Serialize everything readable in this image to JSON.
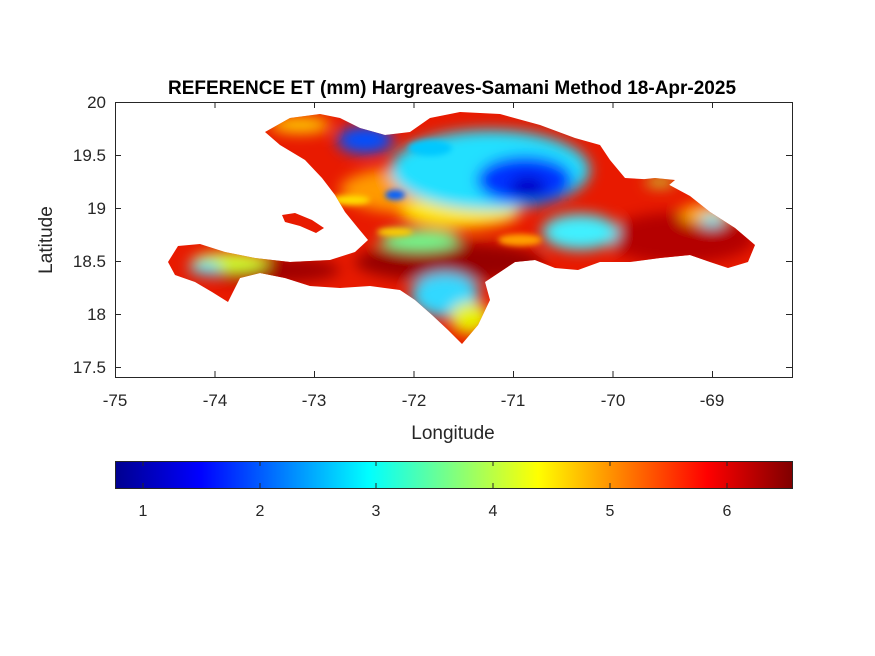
{
  "title": "REFERENCE ET (mm) Hargreaves-Samani Method  18-Apr-2025",
  "xlabel": "Longitude",
  "ylabel": "Latitude",
  "xticks": [
    "-75",
    "-74",
    "-73",
    "-72",
    "-71",
    "-70",
    "-69"
  ],
  "yticks": [
    "17.5",
    "18",
    "18.5",
    "19",
    "19.5",
    "20"
  ],
  "colorbar": {
    "colormap": "jet",
    "range": [
      0.75,
      6.55
    ],
    "ticks": [
      "1",
      "2",
      "3",
      "4",
      "5",
      "6"
    ],
    "colors": [
      "#00008f",
      "#0000ff",
      "#00ffff",
      "#ffff00",
      "#ff0000",
      "#800000"
    ]
  },
  "chart_data": {
    "type": "heatmap",
    "title": "REFERENCE ET (mm) Hargreaves-Samani Method  18-Apr-2025",
    "xlabel": "Longitude",
    "ylabel": "Latitude",
    "xlim": [
      -75,
      -68.2
    ],
    "ylim": [
      17.4,
      20
    ],
    "grid": false,
    "variable_range": [
      0.75,
      6.55
    ],
    "zones": [
      {
        "lon": -70.9,
        "lat": 19.3,
        "value": 1.6
      },
      {
        "lon": -71.4,
        "lat": 19.35,
        "value": 2.4
      },
      {
        "lon": -72.55,
        "lat": 19.55,
        "value": 2.5
      },
      {
        "lon": -71.9,
        "lat": 18.7,
        "value": 2.7
      },
      {
        "lon": -71.6,
        "lat": 18.05,
        "value": 2.8
      },
      {
        "lon": -70.55,
        "lat": 18.75,
        "value": 3.2
      },
      {
        "lon": -72.1,
        "lat": 19.05,
        "value": 4.3
      },
      {
        "lon": -73.8,
        "lat": 18.4,
        "value": 3.9
      },
      {
        "lon": -69.6,
        "lat": 18.95,
        "value": 5.6
      },
      {
        "lon": -69.2,
        "lat": 18.6,
        "value": 6.0
      },
      {
        "lon": -71.95,
        "lat": 18.5,
        "value": 6.4
      },
      {
        "lon": -72.7,
        "lat": 18.6,
        "value": 6.1
      },
      {
        "lon": -74.2,
        "lat": 18.55,
        "value": 5.9
      },
      {
        "lon": -70.0,
        "lat": 19.5,
        "value": 5.2
      }
    ]
  }
}
